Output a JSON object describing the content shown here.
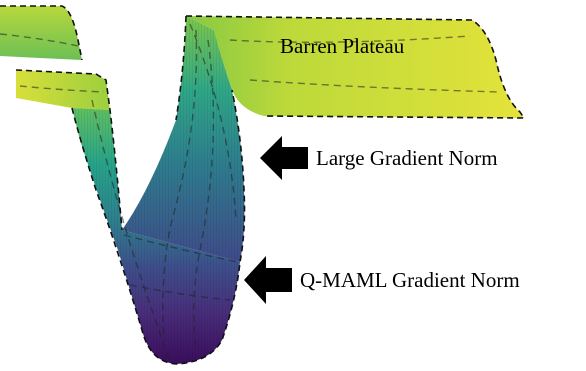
{
  "labels": {
    "barren_plateau": "Barren Plateau",
    "large_gradient_norm": "Large Gradient Norm",
    "qmaml_gradient_norm": "Q-MAML Gradient Norm"
  },
  "colors": {
    "plateau_yellow": "#d9e03a",
    "plateau_green": "#9ccf3e",
    "wall_teal": "#2aa48a",
    "wall_blue": "#3b6b8f",
    "valley_purple": "#4b1f78",
    "valley_deep": "#3a0d5c",
    "outline": "#111111",
    "arrow": "#000000"
  },
  "icons": {
    "pointer": "left-arrow-icon"
  }
}
